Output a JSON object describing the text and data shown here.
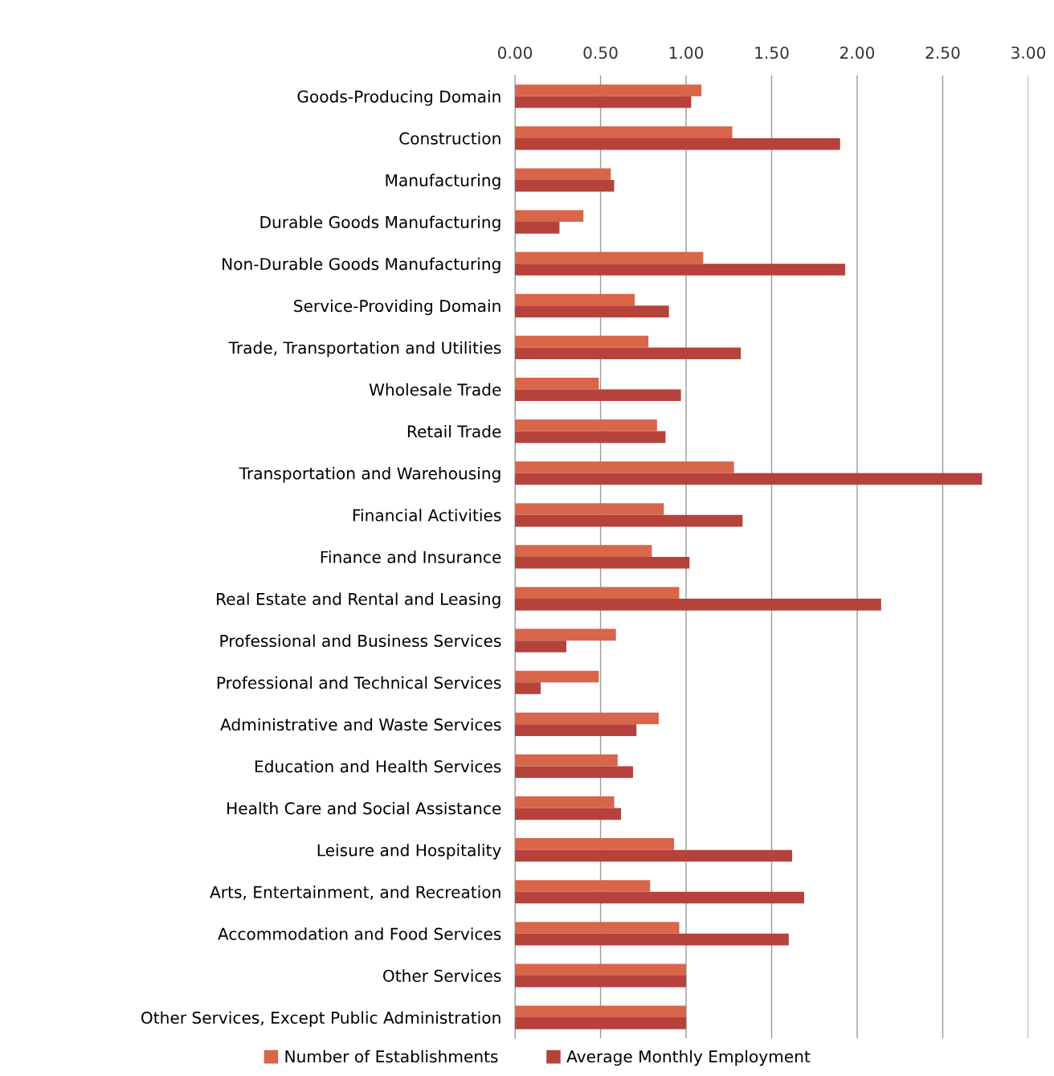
{
  "chart_data": {
    "type": "bar",
    "orientation": "horizontal",
    "categories": [
      "Goods-Producing Domain",
      "Construction",
      "Manufacturing",
      "Durable Goods Manufacturing",
      "Non-Durable Goods Manufacturing",
      "Service-Providing Domain",
      "Trade, Transportation and Utilities",
      "Wholesale Trade",
      "Retail Trade",
      "Transportation and Warehousing",
      "Financial Activities",
      "Finance and Insurance",
      "Real Estate and Rental and Leasing",
      "Professional and Business Services",
      "Professional and Technical Services",
      "Administrative and Waste Services",
      "Education and Health Services",
      "Health Care and Social Assistance",
      "Leisure and Hospitality",
      "Arts, Entertainment, and Recreation",
      "Accommodation and Food Services",
      "Other Services",
      "Other Services, Except Public Administration"
    ],
    "series": [
      {
        "name": "Number of Establishments",
        "color": "#d9654b",
        "values": [
          1.09,
          1.27,
          0.56,
          0.4,
          1.1,
          0.7,
          0.78,
          0.49,
          0.83,
          1.28,
          0.87,
          0.8,
          0.96,
          0.59,
          0.49,
          0.84,
          0.6,
          0.58,
          0.93,
          0.79,
          0.96,
          1.0,
          1.0
        ]
      },
      {
        "name": "Average Monthly Employment",
        "color": "#b6423c",
        "values": [
          1.03,
          1.9,
          0.58,
          0.26,
          1.93,
          0.9,
          1.32,
          0.97,
          0.88,
          2.73,
          1.33,
          1.02,
          2.14,
          0.3,
          0.15,
          0.71,
          0.69,
          0.62,
          1.62,
          1.69,
          1.6,
          1.0,
          1.0
        ]
      }
    ],
    "xlim": [
      0,
      3
    ],
    "xticks": [
      {
        "value": 0,
        "label": "0.00"
      },
      {
        "value": 0.5,
        "label": "0.50"
      },
      {
        "value": 1,
        "label": "1.00"
      },
      {
        "value": 1.5,
        "label": "1.50"
      },
      {
        "value": 2,
        "label": "2.00"
      },
      {
        "value": 2.5,
        "label": "2.50"
      },
      {
        "value": 3,
        "label": "3.00"
      }
    ],
    "grid": "x",
    "legend": "bottom"
  }
}
